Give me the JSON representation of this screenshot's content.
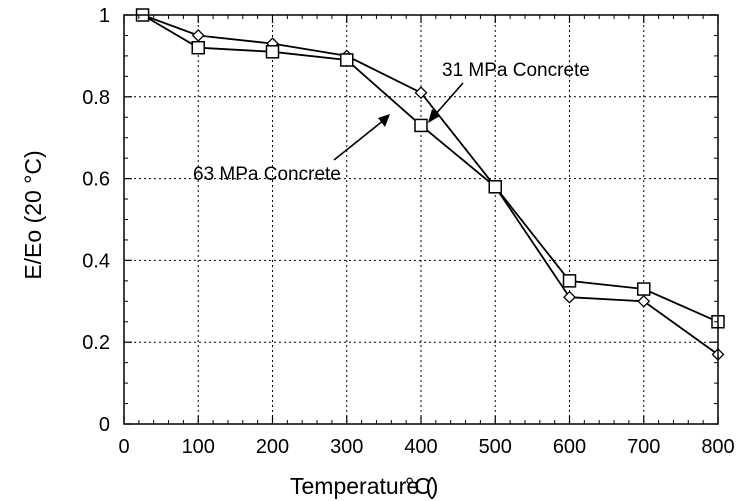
{
  "chart_data": {
    "type": "line",
    "title": "",
    "xlabel": "Temperature (",
    "xlabel_unit": "°C)",
    "ylabel": "E/Eo (20 °C)",
    "xlim": [
      0,
      800
    ],
    "ylim": [
      0,
      1
    ],
    "xticks": [
      "0",
      "100",
      "200",
      "300",
      "400",
      "500",
      "600",
      "700",
      "800"
    ],
    "yticks": [
      "0",
      "0.2",
      "0.4",
      "0.6",
      "0.8",
      "1"
    ],
    "grid": true,
    "series": [
      {
        "name": "31 MPa Concrete",
        "marker": "diamond",
        "x": [
          25,
          100,
          200,
          300,
          400,
          500,
          600,
          700,
          800
        ],
        "y": [
          1.0,
          0.95,
          0.93,
          0.9,
          0.81,
          0.58,
          0.31,
          0.3,
          0.17
        ]
      },
      {
        "name": "63 MPa Concrete",
        "marker": "square",
        "x": [
          25,
          100,
          200,
          300,
          400,
          500,
          600,
          700,
          800
        ],
        "y": [
          1.0,
          0.92,
          0.91,
          0.89,
          0.73,
          0.58,
          0.35,
          0.33,
          0.25
        ]
      }
    ],
    "annotations": [
      {
        "text": "31 MPa Concrete"
      },
      {
        "text": "63 MPa Concrete"
      }
    ]
  }
}
